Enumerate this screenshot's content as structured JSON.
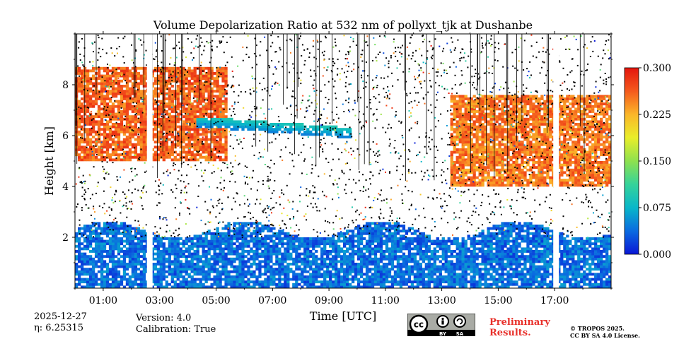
{
  "chart_data": {
    "type": "heatmap",
    "title": "Volume Depolarization Ratio at 532 nm of pollyxt_tjk at Dushanbe",
    "xlabel": "Time [UTC]",
    "ylabel": "Height [km]",
    "x_range_hours": [
      0.0,
      19.0
    ],
    "y_range_km": [
      0.0,
      10.0
    ],
    "xticks": [
      "01:00",
      "03:00",
      "05:00",
      "07:00",
      "09:00",
      "11:00",
      "13:00",
      "15:00",
      "17:00"
    ],
    "xtick_hours": [
      1,
      3,
      5,
      7,
      9,
      11,
      13,
      15,
      17
    ],
    "yticks": [
      "2",
      "4",
      "6",
      "8"
    ],
    "ytick_values": [
      2,
      4,
      6,
      8
    ],
    "colorbar": {
      "min": 0.0,
      "max": 0.3,
      "ticks": [
        "0.000",
        "0.075",
        "0.150",
        "0.225",
        "0.300"
      ],
      "colors": [
        "#0a16d6",
        "#0a6be0",
        "#09b7c9",
        "#35d39a",
        "#8ee14e",
        "#e9ee2a",
        "#fbb629",
        "#f45a1d",
        "#e4150e"
      ]
    },
    "data_gaps_hours": [
      [
        2.55,
        2.75
      ],
      [
        16.95,
        17.15
      ]
    ],
    "features": [
      {
        "name": "surface aerosol layer",
        "from_h": 0.0,
        "to_h": 19.0,
        "base_km": 0.0,
        "top_km": 2.3,
        "value": 0.04
      },
      {
        "name": "elevated dust layer (morning)",
        "from_h": 0.0,
        "to_h": 5.4,
        "base_km": 5.0,
        "top_km": 8.7,
        "value": 0.26
      },
      {
        "name": "thin cloud layer",
        "from_h": 4.3,
        "to_h": 9.8,
        "base_km": 6.0,
        "top_km": 6.6,
        "value": 0.07
      },
      {
        "name": "elevated dust layer (afternoon)",
        "from_h": 13.3,
        "to_h": 19.0,
        "base_km": 4.0,
        "top_km": 7.6,
        "value": 0.25
      }
    ]
  },
  "footer": {
    "date": "2025-12-27",
    "eta_label": "η: 6.25315",
    "version": "Version: 4.0",
    "calibration": "Calibration: True",
    "badge_cc": "cc",
    "badge_by": "BY",
    "badge_sa": "SA",
    "preliminary_line1": "Preliminary",
    "preliminary_line2": "Results.",
    "copyright": "© TROPOS 2025.",
    "license": "CC BY SA 4.0 License."
  }
}
